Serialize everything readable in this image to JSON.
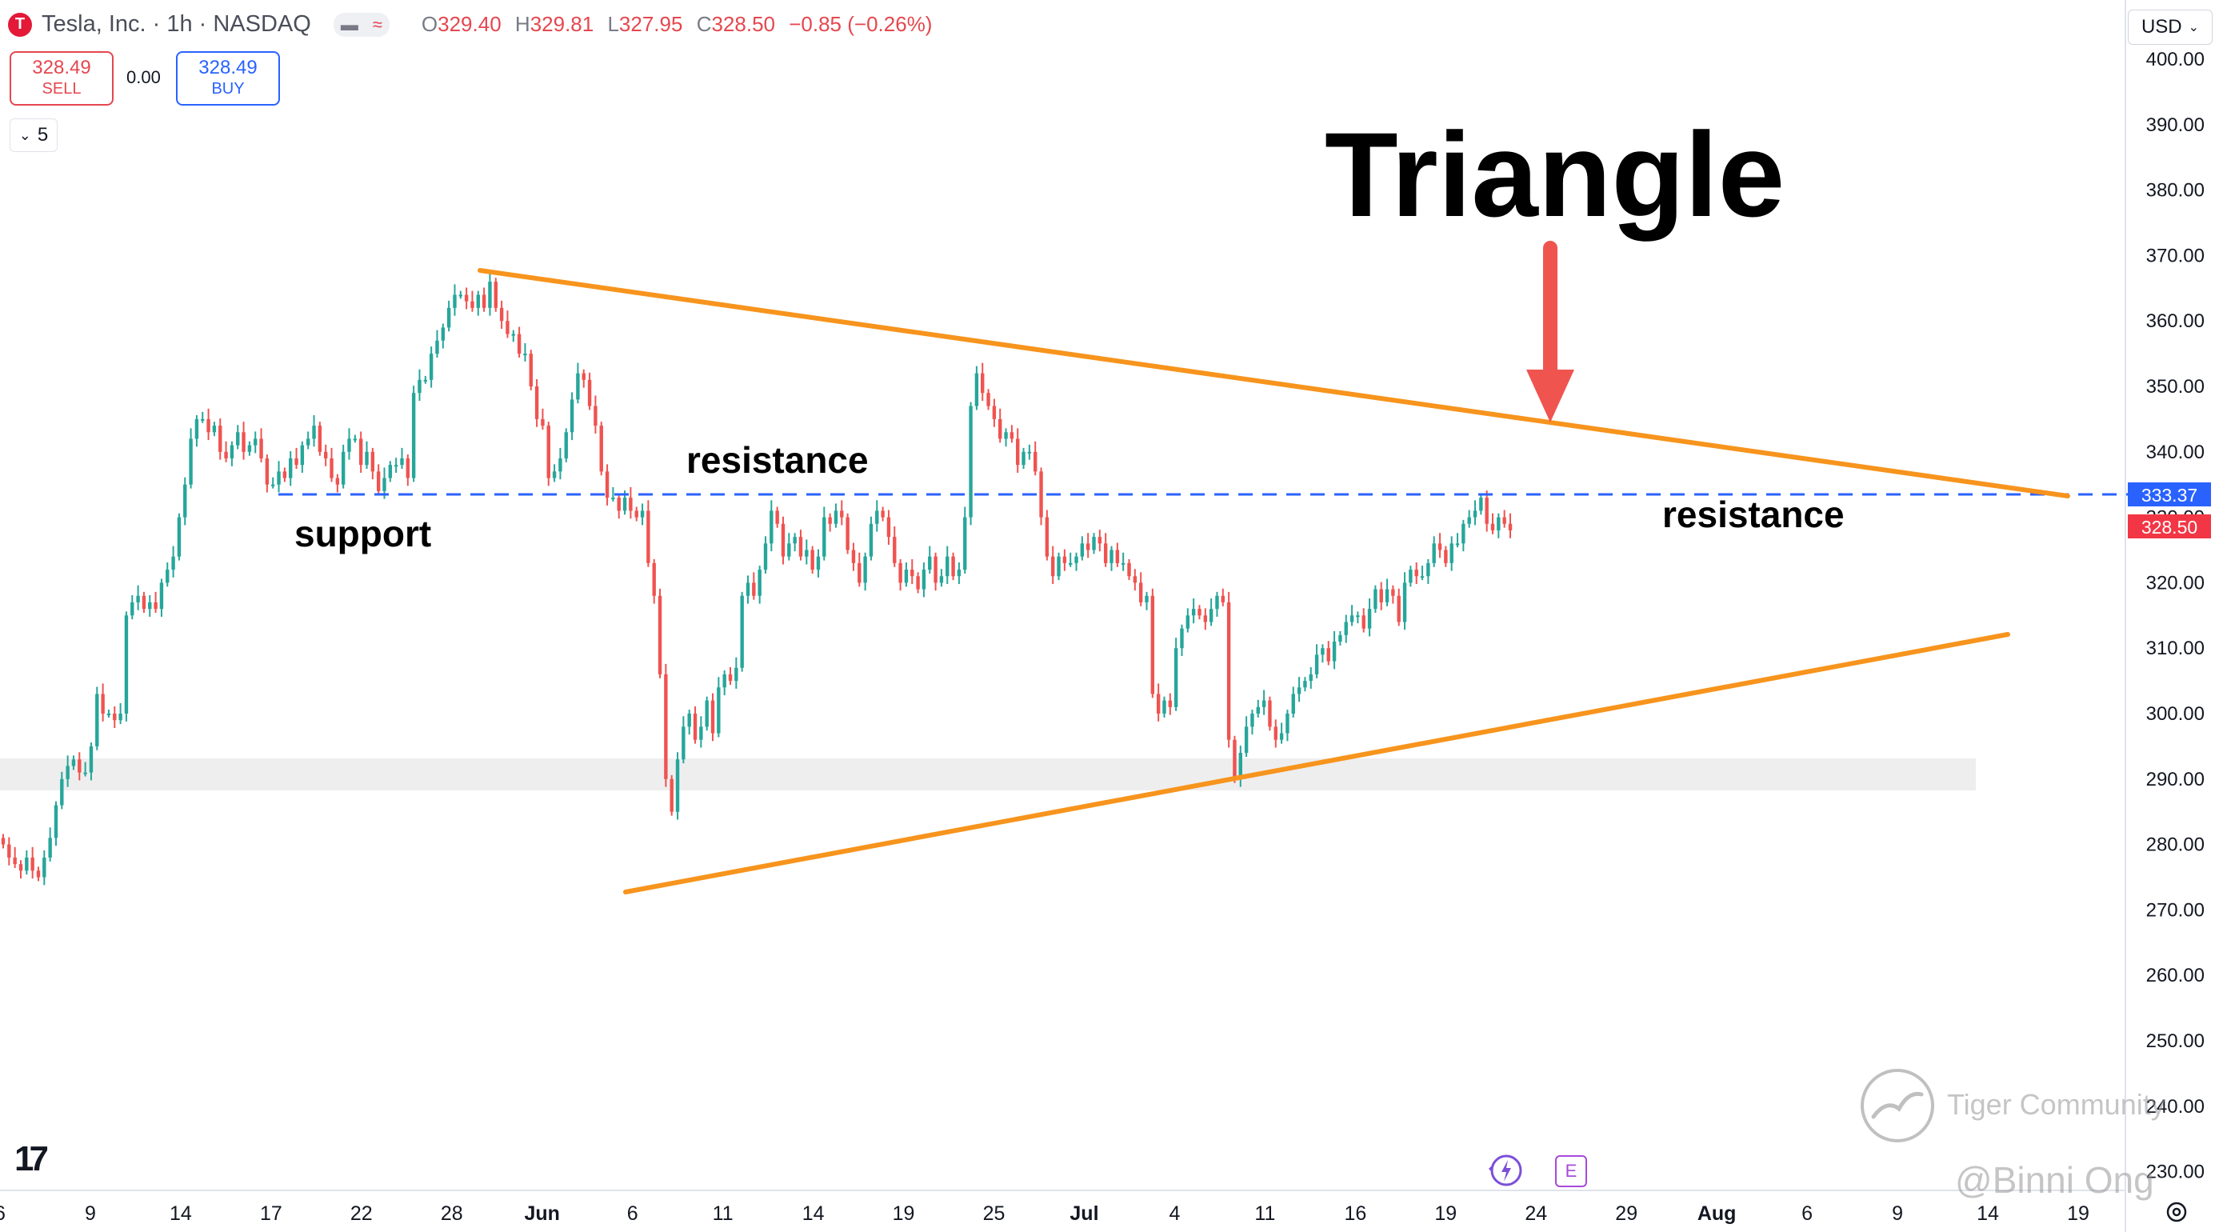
{
  "header": {
    "logo_letter": "T",
    "title": "Tesla, Inc. · 1h · NASDAQ",
    "ohlc": [
      {
        "k": "O",
        "v": "329.40"
      },
      {
        "k": "H",
        "v": "329.81"
      },
      {
        "k": "L",
        "v": "327.95"
      },
      {
        "k": "C",
        "v": "328.50"
      },
      {
        "k": "",
        "v": "−0.85 (−0.26%)"
      }
    ]
  },
  "trade": {
    "sell_price": "328.49",
    "sell_label": "SELL",
    "spread": "0.00",
    "buy_price": "328.49",
    "buy_label": "BUY"
  },
  "collapse_count": "5",
  "currency": "USD",
  "annotations": {
    "title": "Triangle",
    "support": "support",
    "resistance_left": "resistance",
    "resistance_right": "resistance"
  },
  "watermarks": {
    "community": "Tiger Community",
    "handle": "@Binni Ong"
  },
  "events": {
    "earnings_label": "E"
  },
  "colors": {
    "up": "#26a69a",
    "down": "#ef5350",
    "triangle": "#f7941d",
    "level_line": "#2962ff",
    "arrow": "#f0544f",
    "last_price_bg": "#f23645",
    "level_label_bg": "#2962ff",
    "zone": "#eeeeee"
  },
  "chart_data": {
    "type": "candlestick",
    "symbol": "TSLA",
    "interval": "1h",
    "y_ticks": [
      "400.00",
      "390.00",
      "380.00",
      "370.00",
      "360.00",
      "350.00",
      "340.00",
      "330.00",
      "320.00",
      "310.00",
      "300.00",
      "290.00",
      "280.00",
      "270.00",
      "260.00",
      "250.00",
      "240.00",
      "230.00"
    ],
    "x_ticks": [
      "6",
      "9",
      "14",
      "17",
      "22",
      "28",
      "Jun",
      "6",
      "11",
      "14",
      "19",
      "25",
      "Jul",
      "4",
      "11",
      "16",
      "19",
      "24",
      "29",
      "Aug",
      "6",
      "9",
      "14",
      "19"
    ],
    "ylim": [
      230,
      400
    ],
    "price_labels": [
      {
        "value": "333.37",
        "kind": "level"
      },
      {
        "value": "328.50",
        "kind": "last"
      }
    ],
    "closes": [
      280,
      278,
      277,
      276,
      278,
      276,
      275,
      278,
      281,
      286,
      290,
      292,
      293,
      291,
      291,
      295,
      303,
      300,
      300,
      299,
      300,
      315,
      317,
      318,
      316,
      317,
      316,
      320,
      322,
      324,
      330,
      335,
      342,
      345,
      345,
      343,
      344,
      340,
      339,
      341,
      343,
      340,
      341,
      342,
      339,
      335,
      335,
      337,
      336,
      339,
      338,
      341,
      342,
      344,
      340,
      339,
      336,
      335,
      340,
      342,
      342,
      338,
      340,
      337,
      334,
      336,
      338,
      338,
      339,
      336,
      349,
      351,
      351,
      355,
      357,
      359,
      362,
      364,
      364,
      363,
      362,
      364,
      362,
      366,
      362,
      360,
      358,
      358,
      355,
      355,
      350,
      345,
      344,
      336,
      337,
      339,
      343,
      348,
      352,
      351,
      347,
      344,
      337,
      333,
      333,
      331,
      333,
      331,
      330,
      331,
      323,
      318,
      306,
      290,
      285,
      293,
      298,
      300,
      296,
      298,
      302,
      297,
      304,
      306,
      305,
      307,
      318,
      320,
      318,
      322,
      326,
      331,
      329,
      324,
      326,
      327,
      324,
      325,
      322,
      324,
      330,
      329,
      331,
      330,
      325,
      323,
      320,
      324,
      329,
      331,
      330,
      327,
      323,
      320,
      322,
      321,
      319,
      322,
      324,
      320,
      321,
      324,
      321,
      322,
      330,
      347,
      352,
      349,
      347,
      345,
      342,
      343,
      342,
      338,
      340,
      340,
      337,
      330,
      324,
      321,
      324,
      323,
      323,
      324,
      326,
      325,
      327,
      326,
      323,
      325,
      323,
      323,
      321,
      320,
      317,
      318,
      303,
      300,
      302,
      301,
      310,
      313,
      315,
      316,
      315,
      314,
      316,
      318,
      317,
      296,
      290,
      294,
      298,
      300,
      301,
      302,
      298,
      296,
      297,
      300,
      303,
      304,
      305,
      306,
      309,
      310,
      308,
      311,
      312,
      314,
      315,
      315,
      313,
      316,
      319,
      317,
      319,
      318,
      314,
      320,
      322,
      321,
      321,
      323,
      326,
      325,
      323,
      326,
      326,
      329,
      330,
      331,
      333,
      329,
      328,
      330,
      329,
      328
    ]
  }
}
